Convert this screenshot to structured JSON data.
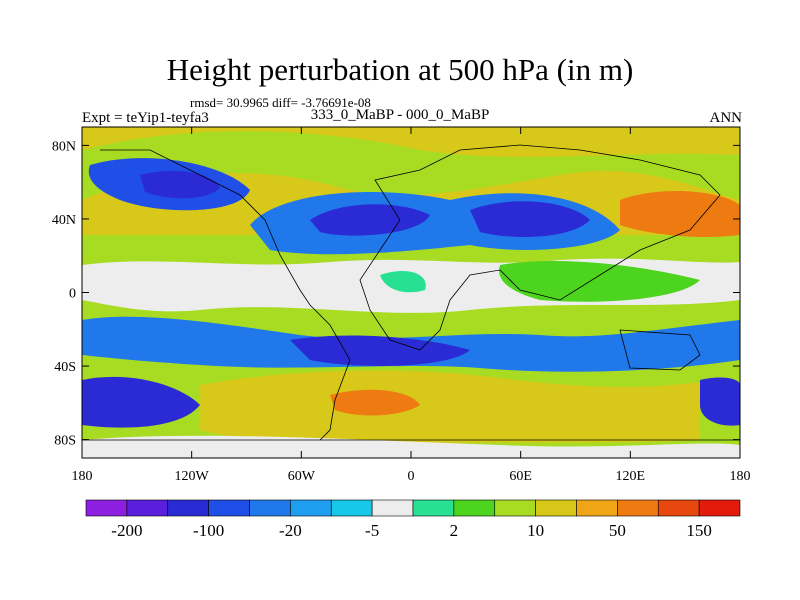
{
  "chart_data": {
    "type": "contour_map",
    "title": "Height perturbation at 500 hPa (in m)",
    "stats_line": "rmsd= 30.9965 diff= -3.76691e-08",
    "left_label": "Expt = teYip1-teyfa3",
    "center_label": "333_0_MaBP - 000_0_MaBP",
    "right_label": "ANN",
    "x_axis": {
      "range": [
        -180,
        180
      ],
      "ticks": [
        -180,
        -120,
        -60,
        0,
        60,
        120,
        180
      ],
      "tick_labels": [
        "180",
        "120W",
        "60W",
        "0",
        "60E",
        "120E",
        "180"
      ]
    },
    "y_axis": {
      "range": [
        -90,
        90
      ],
      "ticks": [
        80,
        40,
        0,
        -40,
        -80
      ],
      "tick_labels": [
        "80N",
        "40N",
        "0",
        "40S",
        "80S"
      ]
    },
    "colorbar": {
      "levels": [
        "-200",
        "-100",
        "-20",
        "-5",
        "2",
        "10",
        "50",
        "150"
      ],
      "colors": [
        "#8C1FE0",
        "#5A1EDC",
        "#2B2BD6",
        "#1F4FE6",
        "#2078EA",
        "#1E9FEF",
        "#18C8E8",
        "#EDEDED",
        "#27E091",
        "#4CD41E",
        "#A8DC23",
        "#D8C81A",
        "#F0A516",
        "#EE7A12",
        "#E8480E",
        "#E21B0B"
      ]
    },
    "regions": [
      {
        "name": "north-pacific-low",
        "lon": -140,
        "lat": 62,
        "value": -120
      },
      {
        "name": "north-atlantic-low",
        "lon": -20,
        "lat": 40,
        "value": -100
      },
      {
        "name": "central-asia-low",
        "lon": 65,
        "lat": 42,
        "value": -110
      },
      {
        "name": "north-pacific-high",
        "lon": 140,
        "lat": 40,
        "value": 90
      },
      {
        "name": "arctic-high",
        "lon": -10,
        "lat": 68,
        "value": 40
      },
      {
        "name": "tropical-band",
        "lon": -20,
        "lat": 5,
        "value": 0
      },
      {
        "name": "indian-ocean-high",
        "lon": 70,
        "lat": 0,
        "value": 15
      },
      {
        "name": "southern-atlantic-low",
        "lon": 0,
        "lat": -38,
        "value": -90
      },
      {
        "name": "southern-pacific-high",
        "lon": -20,
        "lat": -60,
        "value": 60
      },
      {
        "name": "southern-ocean-low",
        "lon": -160,
        "lat": -62,
        "value": -100
      }
    ]
  }
}
